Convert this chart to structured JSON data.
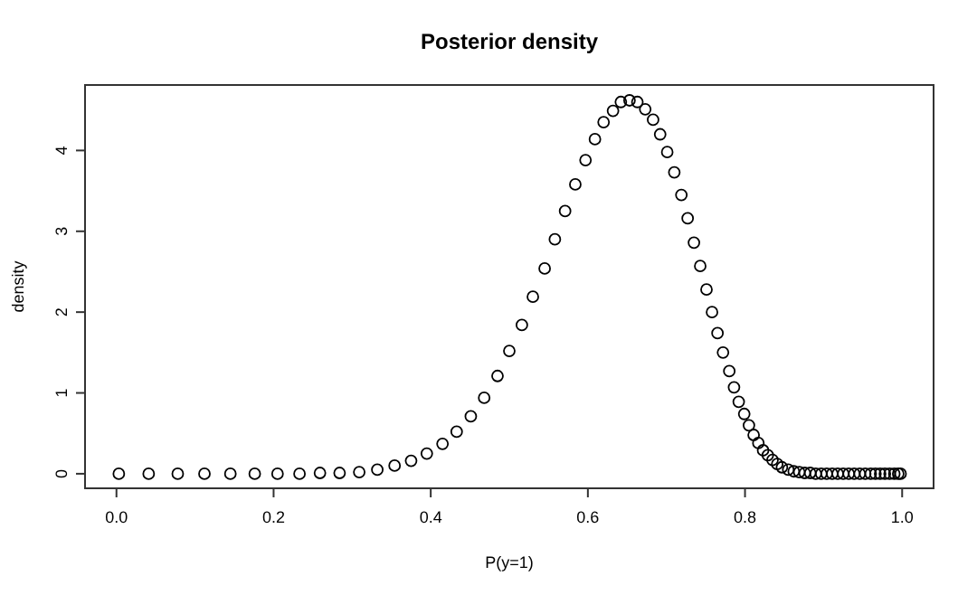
{
  "chart_data": {
    "type": "scatter",
    "title": "Posterior density",
    "xlabel": "P(y=1)",
    "ylabel": "density",
    "x": [
      0.003,
      0.041,
      0.078,
      0.112,
      0.145,
      0.176,
      0.205,
      0.233,
      0.259,
      0.284,
      0.309,
      0.332,
      0.354,
      0.375,
      0.395,
      0.415,
      0.433,
      0.451,
      0.468,
      0.485,
      0.5,
      0.516,
      0.53,
      0.545,
      0.558,
      0.571,
      0.584,
      0.597,
      0.609,
      0.62,
      0.632,
      0.642,
      0.653,
      0.663,
      0.673,
      0.683,
      0.692,
      0.701,
      0.71,
      0.719,
      0.727,
      0.735,
      0.743,
      0.751,
      0.758,
      0.765,
      0.772,
      0.78,
      0.786,
      0.792,
      0.799,
      0.805,
      0.811,
      0.817,
      0.823,
      0.829,
      0.835,
      0.841,
      0.847,
      0.855,
      0.862,
      0.869,
      0.876,
      0.883,
      0.89,
      0.897,
      0.904,
      0.911,
      0.918,
      0.925,
      0.932,
      0.939,
      0.946,
      0.953,
      0.96,
      0.966,
      0.972,
      0.978,
      0.984,
      0.99,
      0.995,
      0.998
    ],
    "values": [
      0,
      0,
      0,
      0,
      0,
      0,
      0,
      0,
      0.01,
      0.01,
      0.02,
      0.05,
      0.1,
      0.16,
      0.25,
      0.37,
      0.52,
      0.71,
      0.94,
      1.21,
      1.52,
      1.84,
      2.19,
      2.54,
      2.9,
      3.25,
      3.58,
      3.88,
      4.14,
      4.35,
      4.49,
      4.6,
      4.62,
      4.6,
      4.51,
      4.38,
      4.2,
      3.98,
      3.73,
      3.45,
      3.16,
      2.86,
      2.57,
      2.28,
      2.0,
      1.74,
      1.5,
      1.27,
      1.07,
      0.89,
      0.74,
      0.6,
      0.48,
      0.38,
      0.29,
      0.23,
      0.17,
      0.12,
      0.08,
      0.05,
      0.03,
      0.02,
      0.01,
      0.01,
      0,
      0,
      0,
      0,
      0,
      0,
      0,
      0,
      0,
      0,
      0,
      0,
      0,
      0,
      0,
      0,
      0,
      0
    ],
    "color": "#000000",
    "marker": "circle",
    "grid": false,
    "xlim": [
      -0.04,
      1.04
    ],
    "ylim": [
      -0.18,
      4.81
    ],
    "xticks": [
      {
        "value": 0,
        "label": "0.0"
      },
      0.2,
      0.4,
      0.6,
      0.8,
      {
        "value": 1,
        "label": "1.0"
      }
    ],
    "yticks": [
      0,
      1,
      2,
      3,
      4
    ]
  }
}
